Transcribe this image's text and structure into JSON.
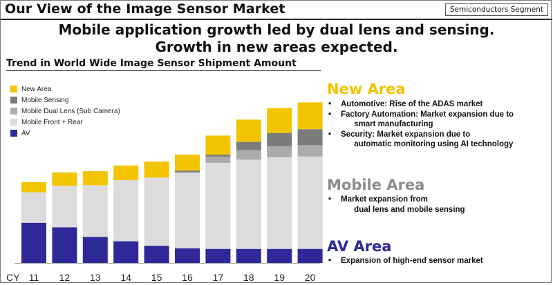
{
  "header": {
    "title": "Our View of the Image Sensor Market",
    "segment": "Semiconductors Segment"
  },
  "headline": {
    "line1": "Mobile application growth led by dual lens and sensing.",
    "line2": "Growth in new areas expected."
  },
  "colors": {
    "new_area": "#f2c500",
    "mobile_sensing": "#7b7b7b",
    "mobile_dual": "#ababab",
    "mobile_front_rear": "#dcdcdc",
    "av": "#2e2898",
    "mobile_area_title": "#8c8c8c"
  },
  "chart_data": {
    "type": "bar",
    "stacked": true,
    "title": "Trend in World Wide Image Sensor Shipment Amount",
    "x_prefix": "CY",
    "categories": [
      "11",
      "12",
      "13",
      "14",
      "15",
      "16",
      "17",
      "18",
      "19",
      "20"
    ],
    "series": [
      {
        "name": "AV",
        "color": "#2e2898",
        "values": [
          63,
          56,
          41,
          34,
          27,
          23,
          22,
          22,
          22,
          22
        ]
      },
      {
        "name": "Mobile Front + Rear",
        "color": "#dcdcdc",
        "values": [
          48,
          65,
          81,
          96,
          107,
          118,
          135,
          140,
          144,
          145
        ]
      },
      {
        "name": "Mobile Dual Lens (Sub Camera)",
        "color": "#ababab",
        "values": [
          0,
          0,
          0,
          0,
          0,
          2,
          10,
          15,
          17,
          18
        ]
      },
      {
        "name": "Mobile Sensing",
        "color": "#7b7b7b",
        "values": [
          0,
          0,
          0,
          0,
          0,
          2,
          3,
          13,
          21,
          25
        ]
      },
      {
        "name": "New Area",
        "color": "#f2c500",
        "values": [
          16,
          21,
          22,
          23,
          25,
          25,
          30,
          35,
          39,
          42
        ]
      }
    ],
    "legend": [
      "New Area",
      "Mobile Sensing",
      "Mobile Dual Lens (Sub Camera)",
      "Mobile Front + Rear",
      "AV"
    ],
    "legend_position": "top-left",
    "ylim": [
      0,
      260
    ],
    "grid": false,
    "y_axis_shown": false
  },
  "areas": {
    "new": {
      "title": "New Area",
      "bullets": [
        "Automotive: Rise of the ADAS market",
        "Factory Automation: Market expansion due to\n      smart manufacturing",
        "Security: Market expansion due to\n      automatic monitoring using AI technology"
      ]
    },
    "mobile": {
      "title": "Mobile Area",
      "bullets": [
        "Market expansion from\n      dual lens and mobile sensing"
      ]
    },
    "av": {
      "title": "AV Area",
      "bullets": [
        "Expansion of high-end sensor market"
      ]
    }
  }
}
